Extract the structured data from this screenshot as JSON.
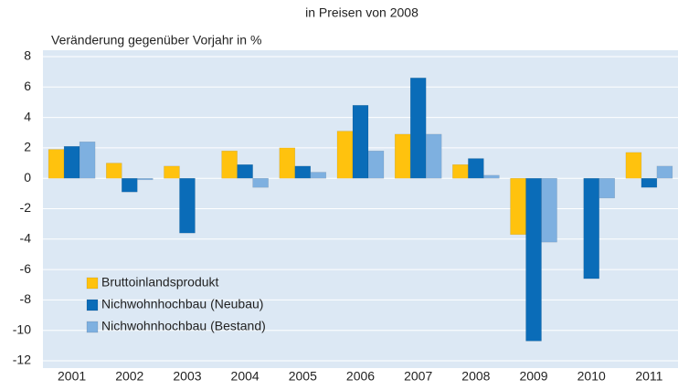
{
  "chart_data": {
    "type": "bar",
    "title": "in Preisen von 2008",
    "y_label": "Veränderung gegenüber Vorjahr in %",
    "categories": [
      "2001",
      "2002",
      "2003",
      "2004",
      "2005",
      "2006",
      "2007",
      "2008",
      "2009",
      "2010",
      "2011"
    ],
    "series": [
      {
        "name": "Bruttoinlandsprodukt",
        "color": "#ffc20e",
        "values": [
          1.9,
          1.0,
          0.8,
          1.8,
          2.0,
          3.1,
          2.9,
          0.9,
          -3.7,
          0,
          1.7
        ]
      },
      {
        "name": "Nichwohnhochbau (Neubau)",
        "color": "#0a6cb8",
        "values": [
          2.1,
          -0.9,
          -3.6,
          0.9,
          0.8,
          4.8,
          6.6,
          1.3,
          -10.7,
          -6.6,
          -0.6
        ]
      },
      {
        "name": "Nichwohnhochbau (Bestand)",
        "color": "#7eb0e0",
        "values": [
          2.4,
          -0.1,
          0,
          -0.6,
          0.4,
          1.8,
          2.9,
          0.2,
          -4.2,
          -1.3,
          0.8
        ]
      }
    ],
    "ylim": [
      -12,
      8
    ],
    "yticks": [
      -12,
      -10,
      -8,
      -6,
      -4,
      -2,
      0,
      2,
      4,
      6,
      8
    ],
    "grid": true,
    "legend": "lower-left"
  }
}
